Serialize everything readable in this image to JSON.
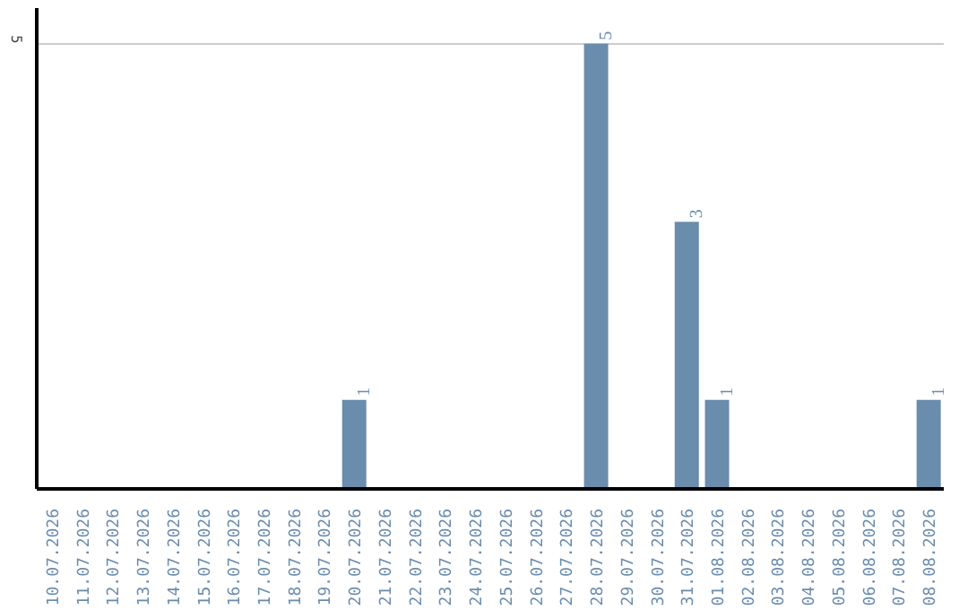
{
  "chart_data": {
    "type": "bar",
    "categories": [
      "10.07.2026",
      "11.07.2026",
      "12.07.2026",
      "13.07.2026",
      "14.07.2026",
      "15.07.2026",
      "16.07.2026",
      "17.07.2026",
      "18.07.2026",
      "19.07.2026",
      "20.07.2026",
      "21.07.2026",
      "22.07.2026",
      "23.07.2026",
      "24.07.2026",
      "25.07.2026",
      "26.07.2026",
      "27.07.2026",
      "28.07.2026",
      "29.07.2026",
      "30.07.2026",
      "31.07.2026",
      "01.08.2026",
      "02.08.2026",
      "03.08.2026",
      "04.08.2026",
      "05.08.2026",
      "06.08.2026",
      "07.08.2026",
      "08.08.2026"
    ],
    "values": [
      0,
      0,
      0,
      0,
      0,
      0,
      0,
      0,
      0,
      0,
      1,
      0,
      0,
      0,
      0,
      0,
      0,
      0,
      5,
      0,
      0,
      3,
      1,
      0,
      0,
      0,
      0,
      0,
      0,
      1
    ],
    "value_labels": [
      null,
      null,
      null,
      null,
      null,
      null,
      null,
      null,
      null,
      null,
      "1",
      null,
      null,
      null,
      null,
      null,
      null,
      null,
      "5",
      null,
      null,
      "3",
      "1",
      null,
      null,
      null,
      null,
      null,
      null,
      "1"
    ],
    "color": "#6a8cad",
    "ylim": [
      0,
      5.4
    ],
    "yticks": [
      5
    ],
    "grid": "y"
  }
}
